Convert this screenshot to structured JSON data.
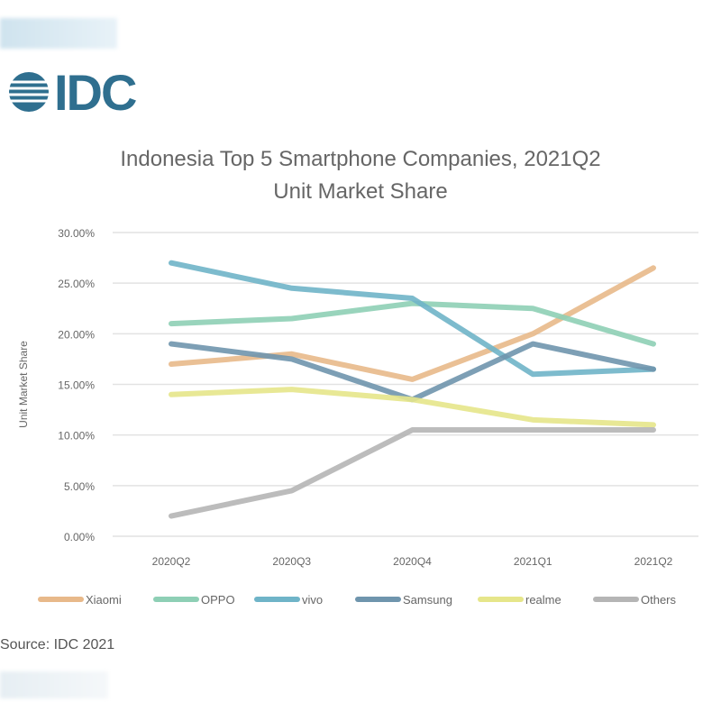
{
  "logo": {
    "text": "IDC"
  },
  "source": "Source: IDC 2021",
  "chart_data": {
    "type": "line",
    "title": "Indonesia Top 5 Smartphone Companies, 2021Q2",
    "subtitle": "Unit Market Share",
    "xlabel": "",
    "ylabel": "Unit Market Share",
    "categories": [
      "2020Q2",
      "2020Q3",
      "2020Q4",
      "2021Q1",
      "2021Q2"
    ],
    "y_ticks": [
      "0.00%",
      "5.00%",
      "10.00%",
      "15.00%",
      "20.00%",
      "25.00%",
      "30.00%"
    ],
    "ylim": [
      0,
      30
    ],
    "grid": true,
    "legend_position": "bottom",
    "series": [
      {
        "name": "Xiaomi",
        "color": "#e8b98a",
        "values": [
          17.0,
          18.0,
          15.5,
          20.0,
          26.5
        ]
      },
      {
        "name": "OPPO",
        "color": "#8ecfb5",
        "values": [
          21.0,
          21.5,
          23.0,
          22.5,
          19.0
        ]
      },
      {
        "name": "vivo",
        "color": "#6fb4c8",
        "values": [
          27.0,
          24.5,
          23.5,
          16.0,
          16.5
        ]
      },
      {
        "name": "Samsung",
        "color": "#6f95ad",
        "values": [
          19.0,
          17.5,
          13.5,
          19.0,
          16.5
        ]
      },
      {
        "name": "realme",
        "color": "#e6e68a",
        "values": [
          14.0,
          14.5,
          13.5,
          11.5,
          11.0
        ]
      },
      {
        "name": "Others",
        "color": "#b5b5b5",
        "values": [
          2.0,
          4.5,
          10.5,
          10.5,
          10.5
        ]
      }
    ]
  }
}
